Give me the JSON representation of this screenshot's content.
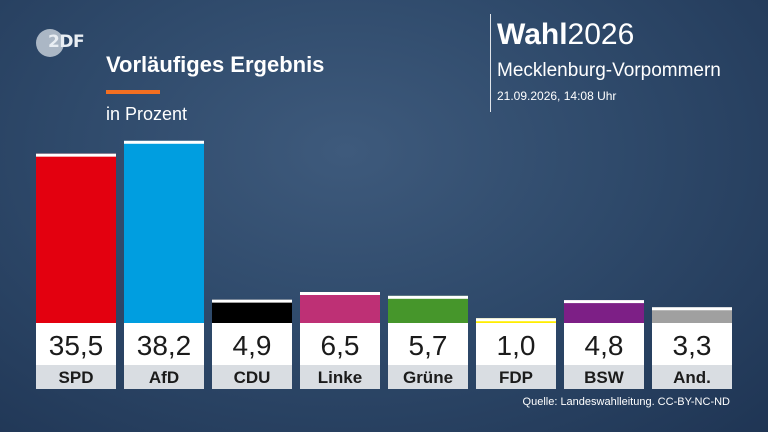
{
  "header": {
    "logo_text": "2DF",
    "title": "Vorläufiges Ergebnis",
    "subtitle": "in Prozent",
    "brand_bold": "Wahl",
    "brand_year": "2026",
    "region": "Mecklenburg-Vorpommern",
    "timestamp": "21.09.2026, 14:08 Uhr"
  },
  "source": "Quelle: Landeswahlleitung. CC-BY-NC-ND",
  "chart_data": {
    "type": "bar",
    "title": "Vorläufiges Ergebnis",
    "ylabel": "in Prozent",
    "xlabel": "",
    "ylim": [
      0,
      40
    ],
    "grid": false,
    "categories": [
      "SPD",
      "AfD",
      "CDU",
      "Linke",
      "Grüne",
      "FDP",
      "BSW",
      "And."
    ],
    "values": [
      35.5,
      38.2,
      4.9,
      6.5,
      5.7,
      1.0,
      4.8,
      3.3
    ],
    "value_labels": [
      "35,5",
      "38,2",
      "4,9",
      "6,5",
      "5,7",
      "1,0",
      "4,8",
      "3,3"
    ],
    "colors": [
      "#e3000f",
      "#009ee0",
      "#000000",
      "#be3075",
      "#46962b",
      "#ffed00",
      "#7d1f86",
      "#a0a0a0"
    ]
  }
}
